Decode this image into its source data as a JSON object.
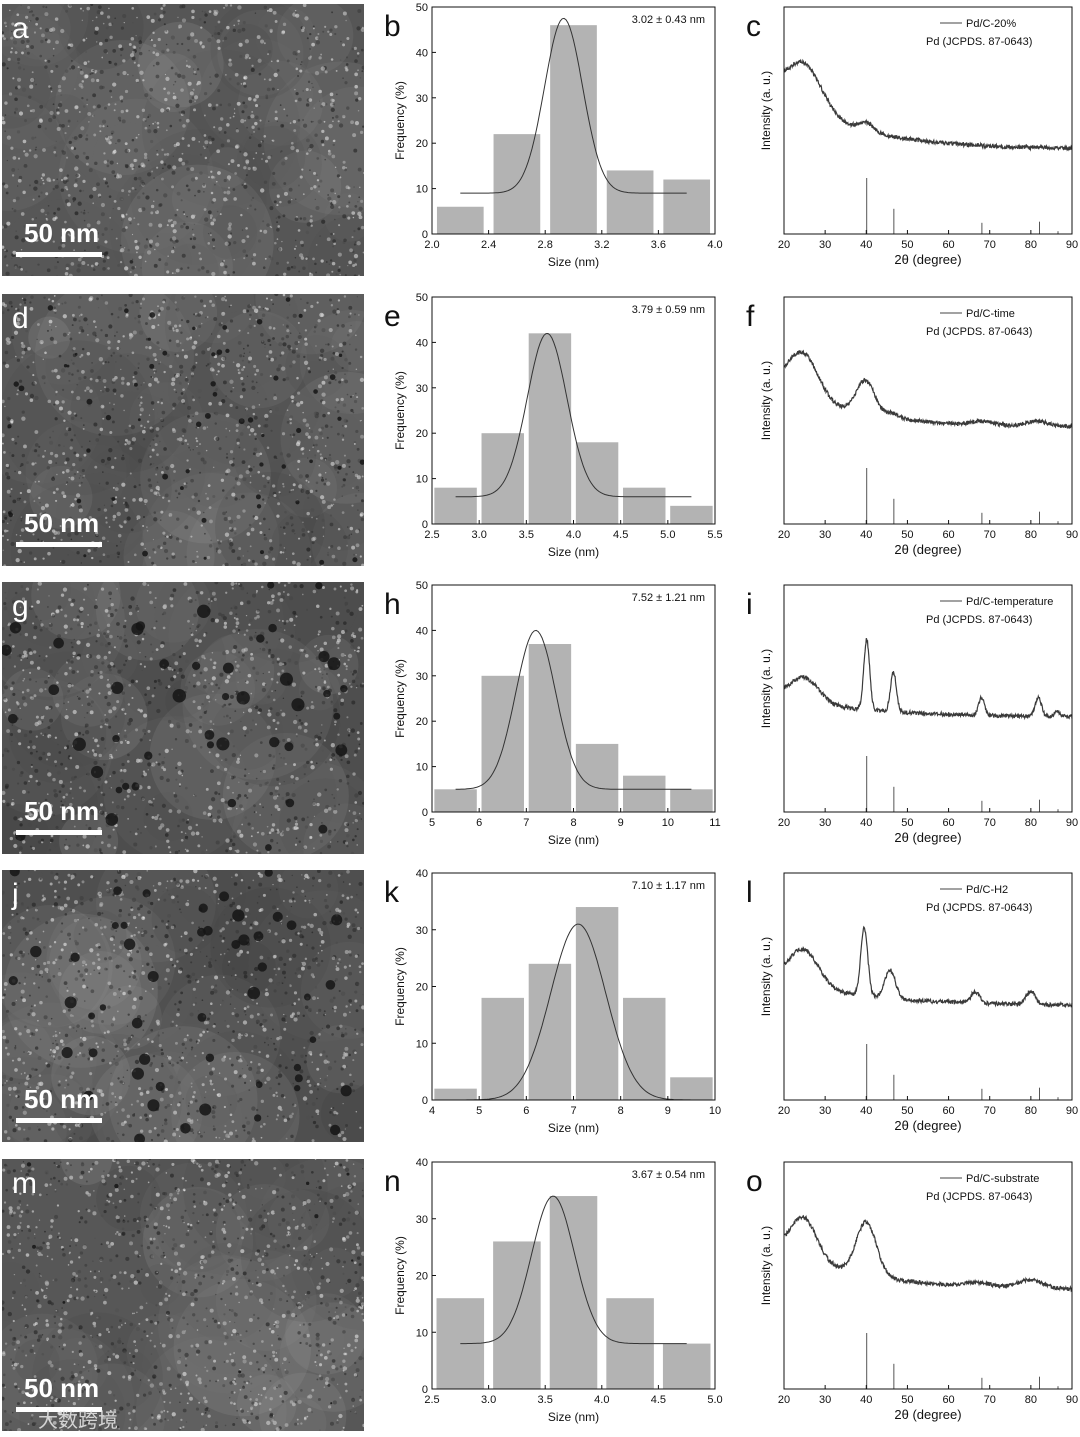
{
  "rows": [
    {
      "tem": {
        "letter": "a",
        "scale_label": "50 nm",
        "shade": 0.4
      },
      "hist": {
        "letter": "b",
        "annotation": "3.02 ± 0.43 nm"
      },
      "xrd": {
        "letter": "c",
        "legend_sample": "Pd/C-20%",
        "legend_ref": "Pd (JCPDS. 87-0643)"
      }
    },
    {
      "tem": {
        "letter": "d",
        "scale_label": "50 nm",
        "shade": 0.45
      },
      "hist": {
        "letter": "e",
        "annotation": "3.79 ± 0.59 nm"
      },
      "xrd": {
        "letter": "f",
        "legend_sample": "Pd/C-time",
        "legend_ref": "Pd (JCPDS. 87-0643)"
      }
    },
    {
      "tem": {
        "letter": "g",
        "scale_label": "50 nm",
        "shade": 0.55
      },
      "hist": {
        "letter": "h",
        "annotation": "7.52 ± 1.21 nm"
      },
      "xrd": {
        "letter": "i",
        "legend_sample": "Pd/C-temperature",
        "legend_ref": "Pd (JCPDS. 87-0643)"
      }
    },
    {
      "tem": {
        "letter": "j",
        "scale_label": "50 nm",
        "shade": 0.52
      },
      "hist": {
        "letter": "k",
        "annotation": "7.10 ± 1.17 nm"
      },
      "xrd": {
        "letter": "l",
        "legend_sample": "Pd/C-H2",
        "legend_ref": "Pd (JCPDS. 87-0643)"
      }
    },
    {
      "tem": {
        "letter": "m",
        "scale_label": "50 nm",
        "shade": 0.38
      },
      "hist": {
        "letter": "n",
        "annotation": "3.67 ± 0.54 nm"
      },
      "xrd": {
        "letter": "o",
        "legend_sample": "Pd/C-substrate",
        "legend_ref": "Pd (JCPDS. 87-0643)"
      }
    }
  ],
  "watermark": "大数跨境",
  "colors": {
    "bar": "#b3b3b3",
    "curve": "#333333",
    "axis": "#111111",
    "xrd": "#3a3a3a"
  },
  "chart_data": [
    {
      "panel": "b",
      "type": "bar",
      "xlabel": "Size (nm)",
      "ylabel": "Frequency (%)",
      "xlim": [
        2.0,
        4.0
      ],
      "ylim": [
        0,
        50
      ],
      "xticks": [
        2.0,
        2.4,
        2.8,
        3.2,
        3.6,
        4.0
      ],
      "yticks": [
        0,
        10,
        20,
        30,
        40,
        50
      ],
      "xtick_decimals": 1,
      "bar_width": 0.33,
      "x": [
        2.2,
        2.6,
        3.0,
        3.4,
        3.8
      ],
      "values": [
        6,
        22,
        46,
        14,
        12
      ],
      "fit": {
        "x0": 2.93,
        "w": 0.27,
        "y0": 9,
        "amp": 38.5,
        "xmin": 2.2,
        "xmax": 3.8
      }
    },
    {
      "panel": "e",
      "type": "bar",
      "xlabel": "Size (nm)",
      "ylabel": "Frequency (%)",
      "xlim": [
        2.5,
        5.5
      ],
      "ylim": [
        0,
        50
      ],
      "xticks": [
        2.5,
        3.0,
        3.5,
        4.0,
        4.5,
        5.0,
        5.5
      ],
      "yticks": [
        0,
        10,
        20,
        30,
        40,
        50
      ],
      "xtick_decimals": 1,
      "bar_width": 0.45,
      "x": [
        2.75,
        3.25,
        3.75,
        4.25,
        4.75,
        5.25
      ],
      "values": [
        8,
        20,
        42,
        18,
        8,
        4
      ],
      "fit": {
        "x0": 3.72,
        "w": 0.42,
        "y0": 6,
        "amp": 36,
        "xmin": 2.75,
        "xmax": 5.25
      }
    },
    {
      "panel": "h",
      "type": "bar",
      "xlabel": "Size (nm)",
      "ylabel": "Frequency (%)",
      "xlim": [
        5,
        11
      ],
      "ylim": [
        0,
        50
      ],
      "xticks": [
        5,
        6,
        7,
        8,
        9,
        10,
        11
      ],
      "yticks": [
        0,
        10,
        20,
        30,
        40,
        50
      ],
      "xtick_decimals": 0,
      "bar_width": 0.9,
      "x": [
        5.5,
        6.5,
        7.5,
        8.5,
        9.5,
        10.5
      ],
      "values": [
        5,
        30,
        37,
        15,
        8,
        5
      ],
      "fit": {
        "x0": 7.2,
        "w": 0.85,
        "y0": 5,
        "amp": 35,
        "xmin": 5.5,
        "xmax": 10.5
      }
    },
    {
      "panel": "k",
      "type": "bar",
      "xlabel": "Size (nm)",
      "ylabel": "Frequency (%)",
      "xlim": [
        4,
        10
      ],
      "ylim": [
        0,
        40
      ],
      "xticks": [
        4,
        5,
        6,
        7,
        8,
        9,
        10
      ],
      "yticks": [
        0,
        10,
        20,
        30,
        40
      ],
      "xtick_decimals": 0,
      "bar_width": 0.9,
      "x": [
        4.5,
        5.5,
        6.5,
        7.5,
        8.5,
        9.5
      ],
      "values": [
        2,
        18,
        24,
        34,
        18,
        4
      ],
      "fit": {
        "x0": 7.1,
        "w": 1.17,
        "y0": 0,
        "amp": 31,
        "xmin": 4.5,
        "xmax": 9.5
      }
    },
    {
      "panel": "n",
      "type": "bar",
      "xlabel": "Size (nm)",
      "ylabel": "Frequency (%)",
      "xlim": [
        2.5,
        5.0
      ],
      "ylim": [
        0,
        40
      ],
      "xticks": [
        2.5,
        3.0,
        3.5,
        4.0,
        4.5,
        5.0
      ],
      "yticks": [
        0,
        10,
        20,
        30,
        40
      ],
      "xtick_decimals": 1,
      "bar_width": 0.42,
      "x": [
        2.75,
        3.25,
        3.75,
        4.25,
        4.75
      ],
      "values": [
        16,
        26,
        34,
        16,
        8
      ],
      "fit": {
        "x0": 3.57,
        "w": 0.38,
        "y0": 8,
        "amp": 26,
        "xmin": 2.75,
        "xmax": 4.75
      }
    },
    {
      "panel": "c",
      "type": "line",
      "xlabel": "2θ (degree)",
      "ylabel": "Intensity (a. u.)",
      "xlim": [
        20,
        90
      ],
      "xticks": [
        20,
        30,
        40,
        50,
        60,
        70,
        80,
        90
      ],
      "reference_lines": [
        {
          "x": 40.1,
          "h": 1.0
        },
        {
          "x": 46.7,
          "h": 0.45
        },
        {
          "x": 68.1,
          "h": 0.2
        },
        {
          "x": 82.1,
          "h": 0.22
        },
        {
          "x": 86.6,
          "h": 0.05
        }
      ],
      "baseline": {
        "a": 0.58,
        "tau": 18,
        "c": 0.17
      },
      "peaks": [
        {
          "x": 25,
          "h": 0.45,
          "w": 6.0
        },
        {
          "x": 40,
          "h": 0.09,
          "w": 2.5
        }
      ]
    },
    {
      "panel": "f",
      "type": "line",
      "xlabel": "2θ (degree)",
      "ylabel": "Intensity (a. u.)",
      "xlim": [
        20,
        90
      ],
      "xticks": [
        20,
        30,
        40,
        50,
        60,
        70,
        80,
        90
      ],
      "reference_lines": [
        {
          "x": 40.1,
          "h": 1.0
        },
        {
          "x": 46.7,
          "h": 0.45
        },
        {
          "x": 68.1,
          "h": 0.2
        },
        {
          "x": 82.1,
          "h": 0.22
        },
        {
          "x": 86.6,
          "h": 0.05
        }
      ],
      "baseline": {
        "a": 0.45,
        "tau": 16,
        "c": 0.3
      },
      "peaks": [
        {
          "x": 24.8,
          "h": 0.43,
          "w": 5.0
        },
        {
          "x": 39.8,
          "h": 0.35,
          "w": 3.2
        },
        {
          "x": 46.5,
          "h": 0.05,
          "w": 2.5
        },
        {
          "x": 68,
          "h": 0.035,
          "w": 3.5
        },
        {
          "x": 81.5,
          "h": 0.05,
          "w": 3.5
        }
      ]
    },
    {
      "panel": "i",
      "type": "line",
      "xlabel": "2θ (degree)",
      "ylabel": "Intensity (a. u.)",
      "xlim": [
        20,
        90
      ],
      "xticks": [
        20,
        30,
        40,
        50,
        60,
        70,
        80,
        90
      ],
      "reference_lines": [
        {
          "x": 40.1,
          "h": 1.0
        },
        {
          "x": 46.7,
          "h": 0.45
        },
        {
          "x": 68.1,
          "h": 0.2
        },
        {
          "x": 82.1,
          "h": 0.22
        },
        {
          "x": 86.6,
          "h": 0.05
        }
      ],
      "baseline": {
        "a": 0.22,
        "tau": 22,
        "c": 0.3
      },
      "peaks": [
        {
          "x": 24.8,
          "h": 0.28,
          "w": 5.0
        },
        {
          "x": 40.1,
          "h": 0.8,
          "w": 1.0
        },
        {
          "x": 46.6,
          "h": 0.45,
          "w": 1.0
        },
        {
          "x": 68.0,
          "h": 0.2,
          "w": 1.0
        },
        {
          "x": 81.8,
          "h": 0.21,
          "w": 1.1
        },
        {
          "x": 86.4,
          "h": 0.06,
          "w": 1.0
        }
      ]
    },
    {
      "panel": "l",
      "type": "line",
      "xlabel": "2θ (degree)",
      "ylabel": "Intensity (a. u.)",
      "xlim": [
        20,
        90
      ],
      "xticks": [
        20,
        30,
        40,
        50,
        60,
        70,
        80,
        90
      ],
      "reference_lines": [
        {
          "x": 40.1,
          "h": 1.0
        },
        {
          "x": 46.7,
          "h": 0.45
        },
        {
          "x": 68.1,
          "h": 0.2
        },
        {
          "x": 82.1,
          "h": 0.22
        },
        {
          "x": 86.6,
          "h": 0.05
        }
      ],
      "baseline": {
        "a": 0.28,
        "tau": 20,
        "c": 0.28
      },
      "peaks": [
        {
          "x": 24.8,
          "h": 0.38,
          "w": 5.0
        },
        {
          "x": 39.5,
          "h": 0.72,
          "w": 1.2
        },
        {
          "x": 45.8,
          "h": 0.3,
          "w": 1.8
        },
        {
          "x": 66.5,
          "h": 0.12,
          "w": 1.5
        },
        {
          "x": 80.0,
          "h": 0.14,
          "w": 1.6
        }
      ]
    },
    {
      "panel": "o",
      "type": "line",
      "xlabel": "2θ (degree)",
      "ylabel": "Intensity (a. u.)",
      "xlim": [
        20,
        90
      ],
      "xticks": [
        20,
        30,
        40,
        50,
        60,
        70,
        80,
        90
      ],
      "reference_lines": [
        {
          "x": 40.1,
          "h": 1.0
        },
        {
          "x": 46.7,
          "h": 0.45
        },
        {
          "x": 68.1,
          "h": 0.2
        },
        {
          "x": 82.1,
          "h": 0.22
        },
        {
          "x": 86.6,
          "h": 0.05
        }
      ],
      "baseline": {
        "a": 0.4,
        "tau": 20,
        "c": 0.3
      },
      "peaks": [
        {
          "x": 24.8,
          "h": 0.4,
          "w": 4.5
        },
        {
          "x": 40.0,
          "h": 0.52,
          "w": 3.5
        },
        {
          "x": 67.5,
          "h": 0.04,
          "w": 4.0
        },
        {
          "x": 79.8,
          "h": 0.08,
          "w": 4.5
        }
      ]
    }
  ]
}
